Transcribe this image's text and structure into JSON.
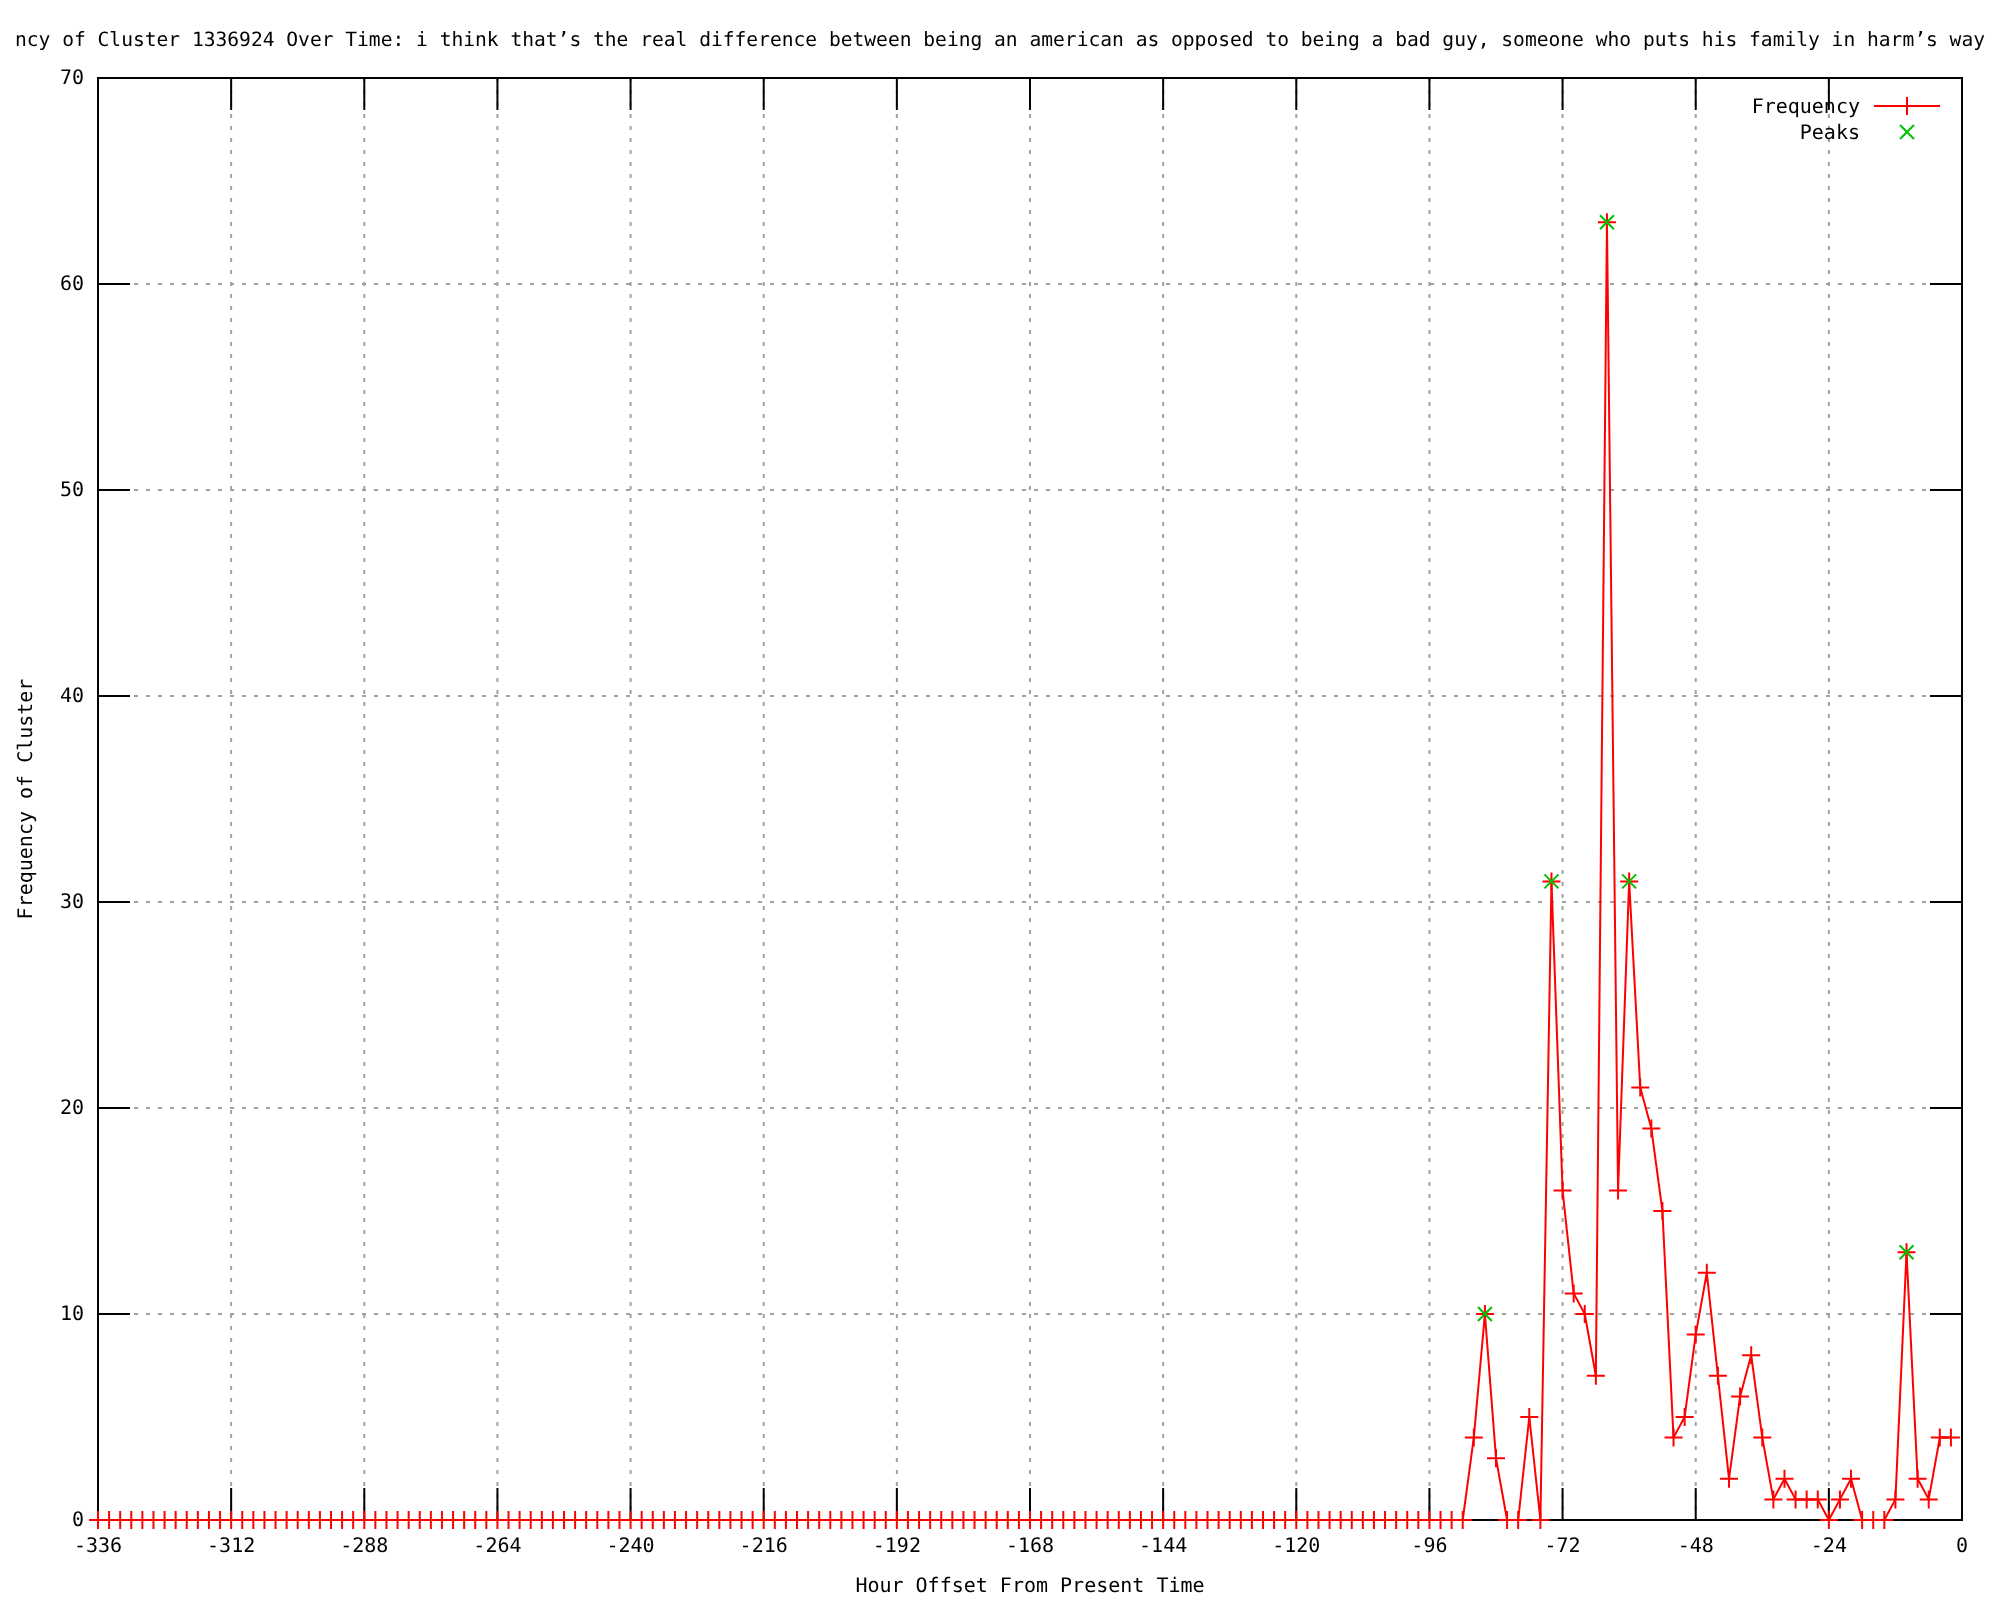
{
  "chart_data": {
    "type": "line",
    "title": "ncy of Cluster 1336924 Over Time: i think that’s the real difference between being an american as opposed to being a bad guy, someone who puts his family in harm’s way",
    "xlabel": "Hour Offset From Present Time",
    "ylabel": "Frequency of Cluster",
    "xlim": [
      -336,
      0
    ],
    "xticks": [
      -336,
      -312,
      -288,
      -264,
      -240,
      -216,
      -192,
      -168,
      -144,
      -120,
      -96,
      -72,
      -48,
      -24,
      0
    ],
    "ylim": [
      0,
      70
    ],
    "yticks": [
      0,
      10,
      20,
      30,
      40,
      50,
      60,
      70
    ],
    "grid": true,
    "legend": "top right",
    "marker": "cross",
    "line_style": "solid",
    "x": [
      -336,
      -334,
      -332,
      -330,
      -328,
      -326,
      -324,
      -322,
      -320,
      -318,
      -316,
      -314,
      -312,
      -310,
      -308,
      -306,
      -304,
      -302,
      -300,
      -298,
      -296,
      -294,
      -292,
      -290,
      -288,
      -286,
      -284,
      -282,
      -280,
      -278,
      -276,
      -274,
      -272,
      -270,
      -268,
      -266,
      -264,
      -262,
      -260,
      -258,
      -256,
      -254,
      -252,
      -250,
      -248,
      -246,
      -244,
      -242,
      -240,
      -238,
      -236,
      -234,
      -232,
      -230,
      -228,
      -226,
      -224,
      -222,
      -220,
      -218,
      -216,
      -214,
      -212,
      -210,
      -208,
      -206,
      -204,
      -202,
      -200,
      -198,
      -196,
      -194,
      -192,
      -190,
      -188,
      -186,
      -184,
      -182,
      -180,
      -178,
      -176,
      -174,
      -172,
      -170,
      -168,
      -166,
      -164,
      -162,
      -160,
      -158,
      -156,
      -154,
      -152,
      -150,
      -148,
      -146,
      -144,
      -142,
      -140,
      -138,
      -136,
      -134,
      -132,
      -130,
      -128,
      -126,
      -124,
      -122,
      -120,
      -118,
      -116,
      -114,
      -112,
      -110,
      -108,
      -106,
      -104,
      -102,
      -100,
      -98,
      -96,
      -94,
      -92,
      -90,
      -88,
      -86,
      -84,
      -82,
      -80,
      -78,
      -76,
      -74,
      -72,
      -70,
      -68,
      -66,
      -64,
      -62,
      -60,
      -58,
      -56,
      -54,
      -52,
      -50,
      -48,
      -46,
      -44,
      -42,
      -40,
      -38,
      -36,
      -34,
      -32,
      -30,
      -28,
      -26,
      -24,
      -22,
      -20,
      -18,
      -16,
      -14,
      -12,
      -10,
      -8,
      -6,
      -4,
      -2
    ],
    "series": [
      {
        "name": "Frequency",
        "color": "#ff0000",
        "values": [
          0,
          0,
          0,
          0,
          0,
          0,
          0,
          0,
          0,
          0,
          0,
          0,
          0,
          0,
          0,
          0,
          0,
          0,
          0,
          0,
          0,
          0,
          0,
          0,
          0,
          0,
          0,
          0,
          0,
          0,
          0,
          0,
          0,
          0,
          0,
          0,
          0,
          0,
          0,
          0,
          0,
          0,
          0,
          0,
          0,
          0,
          0,
          0,
          0,
          0,
          0,
          0,
          0,
          0,
          0,
          0,
          0,
          0,
          0,
          0,
          0,
          0,
          0,
          0,
          0,
          0,
          0,
          0,
          0,
          0,
          0,
          0,
          0,
          0,
          0,
          0,
          0,
          0,
          0,
          0,
          0,
          0,
          0,
          0,
          0,
          0,
          0,
          0,
          0,
          0,
          0,
          0,
          0,
          0,
          0,
          0,
          0,
          0,
          0,
          0,
          0,
          0,
          0,
          0,
          0,
          0,
          0,
          0,
          0,
          0,
          0,
          0,
          0,
          0,
          0,
          0,
          0,
          0,
          0,
          0,
          0,
          0,
          0,
          0,
          4,
          10,
          3,
          0,
          0,
          5,
          0,
          31,
          16,
          11,
          10,
          7,
          63,
          16,
          31,
          21,
          19,
          15,
          4,
          5,
          9,
          12,
          7,
          2,
          6,
          8,
          4,
          1,
          2,
          1,
          1,
          1,
          0,
          1,
          2,
          0,
          0,
          0,
          1,
          13,
          2,
          1,
          4,
          4
        ]
      },
      {
        "name": "Peaks",
        "type": "scatter",
        "color": "#00c000",
        "x": [
          -86,
          -74,
          -64,
          -60,
          -10
        ],
        "values": [
          10,
          31,
          63,
          31,
          13
        ]
      }
    ]
  }
}
